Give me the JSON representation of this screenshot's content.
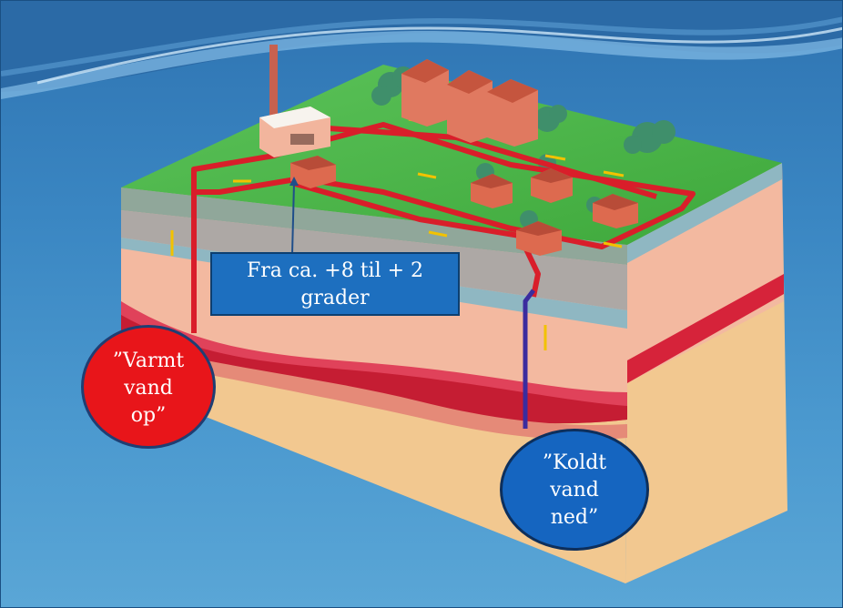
{
  "colors": {
    "background": "#3a86c2",
    "grass": "#47b544",
    "soil_light": "#f3b9a0",
    "soil_red": "#d6233a",
    "soil_sand": "#f2c890",
    "hot_pipe": "#d91e2a",
    "cold_pipe": "#3b2c9e",
    "warm_bubble": "#e8151a",
    "cold_bubble": "#1565c0",
    "label_box": "#1d6fbf"
  },
  "temperature_label": {
    "line1": "Fra  ca. +8 til + 2",
    "line2": "grader"
  },
  "warm_water_label": {
    "line1": "”Varmt",
    "line2": "vand",
    "line3": "op”"
  },
  "cold_water_label": {
    "line1": "”Koldt",
    "line2": "vand",
    "line3": "ned”"
  }
}
